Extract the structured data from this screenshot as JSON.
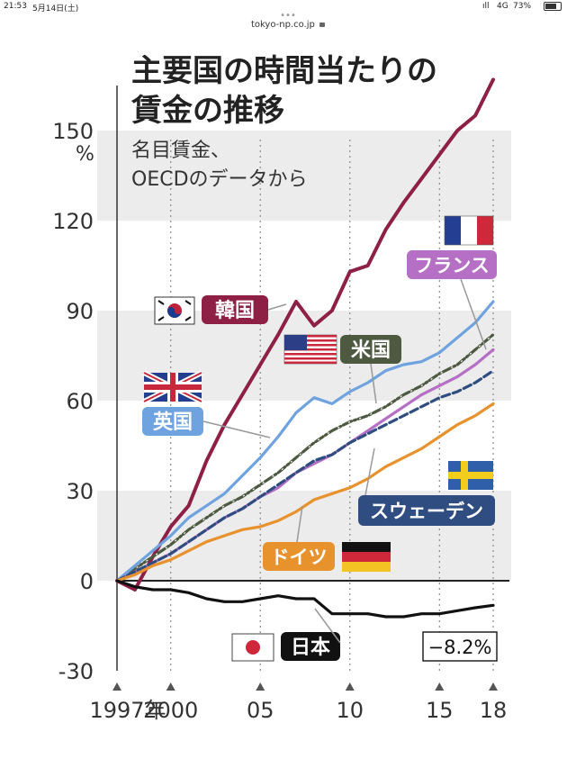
{
  "status_bar": {
    "time": "21:53",
    "date": "5月14日(土)",
    "signal": "ıll",
    "network": "4G",
    "battery": "73%",
    "battery_level": 0.73
  },
  "browser": {
    "menu_dots": "•••",
    "url": "tokyo-np.co.jp",
    "lock_icon": "lock"
  },
  "chart_data": {
    "type": "line",
    "title_line1": "主要国の時間当たりの",
    "title_line2": "賃金の推移",
    "subtitle_line1": "名目賃金、",
    "subtitle_line2": "OECDのデータから",
    "ylabel": "%",
    "ylim": [
      -30,
      165
    ],
    "xlim": [
      1997,
      2018
    ],
    "y_ticks": [
      {
        "value": -30,
        "label": "-30"
      },
      {
        "value": 0,
        "label": "0"
      },
      {
        "value": 30,
        "label": "30"
      },
      {
        "value": 60,
        "label": "60"
      },
      {
        "value": 90,
        "label": "90"
      },
      {
        "value": 120,
        "label": "120"
      },
      {
        "value": 150,
        "label": "150"
      }
    ],
    "x_ticks": [
      {
        "value": 1997,
        "label": "1997年"
      },
      {
        "value": 2000,
        "label": "2000"
      },
      {
        "value": 2005,
        "label": "05"
      },
      {
        "value": 2010,
        "label": "10"
      },
      {
        "value": 2015,
        "label": "15"
      },
      {
        "value": 2018,
        "label": "18"
      }
    ],
    "series": [
      {
        "name": "韓国",
        "key": "korea",
        "color": "#8e1f45",
        "style": "solid",
        "x": [
          1997,
          1998,
          1999,
          2000,
          2001,
          2002,
          2003,
          2004,
          2005,
          2006,
          2007,
          2008,
          2009,
          2010,
          2011,
          2012,
          2013,
          2014,
          2015,
          2016,
          2017,
          2018
        ],
        "values": [
          0,
          -3,
          8,
          18,
          25,
          40,
          52,
          62,
          72,
          82,
          93,
          85,
          90,
          103,
          105,
          117,
          126,
          134,
          142,
          150,
          155,
          167
        ]
      },
      {
        "name": "米国",
        "key": "usa",
        "color": "#4d5940",
        "style": "dashdot",
        "x": [
          1997,
          1998,
          1999,
          2000,
          2001,
          2002,
          2003,
          2004,
          2005,
          2006,
          2007,
          2008,
          2009,
          2010,
          2011,
          2012,
          2013,
          2014,
          2015,
          2016,
          2017,
          2018
        ],
        "values": [
          0,
          4,
          8,
          12,
          17,
          21,
          25,
          28,
          32,
          36,
          41,
          46,
          50,
          53,
          55,
          58,
          62,
          65,
          69,
          72,
          77,
          82
        ]
      },
      {
        "name": "英国",
        "key": "uk",
        "color": "#6fa3e0",
        "style": "solid",
        "x": [
          1997,
          1998,
          1999,
          2000,
          2001,
          2002,
          2003,
          2004,
          2005,
          2006,
          2007,
          2008,
          2009,
          2010,
          2011,
          2012,
          2013,
          2014,
          2015,
          2016,
          2017,
          2018
        ],
        "values": [
          0,
          5,
          10,
          15,
          21,
          25,
          29,
          35,
          41,
          48,
          56,
          61,
          59,
          63,
          66,
          70,
          72,
          73,
          76,
          81,
          86,
          93
        ]
      },
      {
        "name": "フランス",
        "key": "france",
        "color": "#b56fc4",
        "style": "solid",
        "x": [
          1997,
          1998,
          1999,
          2000,
          2001,
          2002,
          2003,
          2004,
          2005,
          2006,
          2007,
          2008,
          2009,
          2010,
          2011,
          2012,
          2013,
          2014,
          2015,
          2016,
          2017,
          2018
        ],
        "values": [
          0,
          3,
          6,
          9,
          13,
          17,
          21,
          24,
          28,
          31,
          36,
          39,
          42,
          46,
          50,
          54,
          58,
          62,
          65,
          68,
          72,
          77
        ]
      },
      {
        "name": "スウェーデン",
        "key": "sweden",
        "color": "#2f4d80",
        "style": "dashed",
        "x": [
          1997,
          1998,
          1999,
          2000,
          2001,
          2002,
          2003,
          2004,
          2005,
          2006,
          2007,
          2008,
          2009,
          2010,
          2011,
          2012,
          2013,
          2014,
          2015,
          2016,
          2017,
          2018
        ],
        "values": [
          0,
          3,
          6,
          9,
          13,
          17,
          21,
          24,
          28,
          32,
          36,
          40,
          42,
          46,
          49,
          52,
          55,
          58,
          61,
          63,
          66,
          70
        ]
      },
      {
        "name": "ドイツ",
        "key": "germany",
        "color": "#e8922d",
        "style": "solid",
        "x": [
          1997,
          1998,
          1999,
          2000,
          2001,
          2002,
          2003,
          2004,
          2005,
          2006,
          2007,
          2008,
          2009,
          2010,
          2011,
          2012,
          2013,
          2014,
          2015,
          2016,
          2017,
          2018
        ],
        "values": [
          0,
          2,
          5,
          7,
          10,
          13,
          15,
          17,
          18,
          20,
          23,
          27,
          29,
          31,
          34,
          38,
          41,
          44,
          48,
          52,
          55,
          59
        ]
      },
      {
        "name": "日本",
        "key": "japan",
        "color": "#111111",
        "style": "solid",
        "x": [
          1997,
          1998,
          1999,
          2000,
          2001,
          2002,
          2003,
          2004,
          2005,
          2006,
          2007,
          2008,
          2009,
          2010,
          2011,
          2012,
          2013,
          2014,
          2015,
          2016,
          2017,
          2018
        ],
        "values": [
          0,
          -2,
          -3,
          -3,
          -4,
          -6,
          -7,
          -7,
          -6,
          -5,
          -6,
          -6,
          -11,
          -11,
          -11,
          -12,
          -12,
          -11,
          -11,
          -10,
          -9,
          -8.2
        ]
      }
    ],
    "labels": {
      "korea": "韓国",
      "usa": "米国",
      "uk": "英国",
      "france": "フランス",
      "sweden": "スウェーデン",
      "germany": "ドイツ",
      "japan": "日本"
    },
    "annotation_japan_end": "−8.2%",
    "colors": {
      "band": "#ececec",
      "zero_line": "#222222",
      "grid_dotted": "#8a8a8a",
      "axis": "#333333"
    }
  }
}
